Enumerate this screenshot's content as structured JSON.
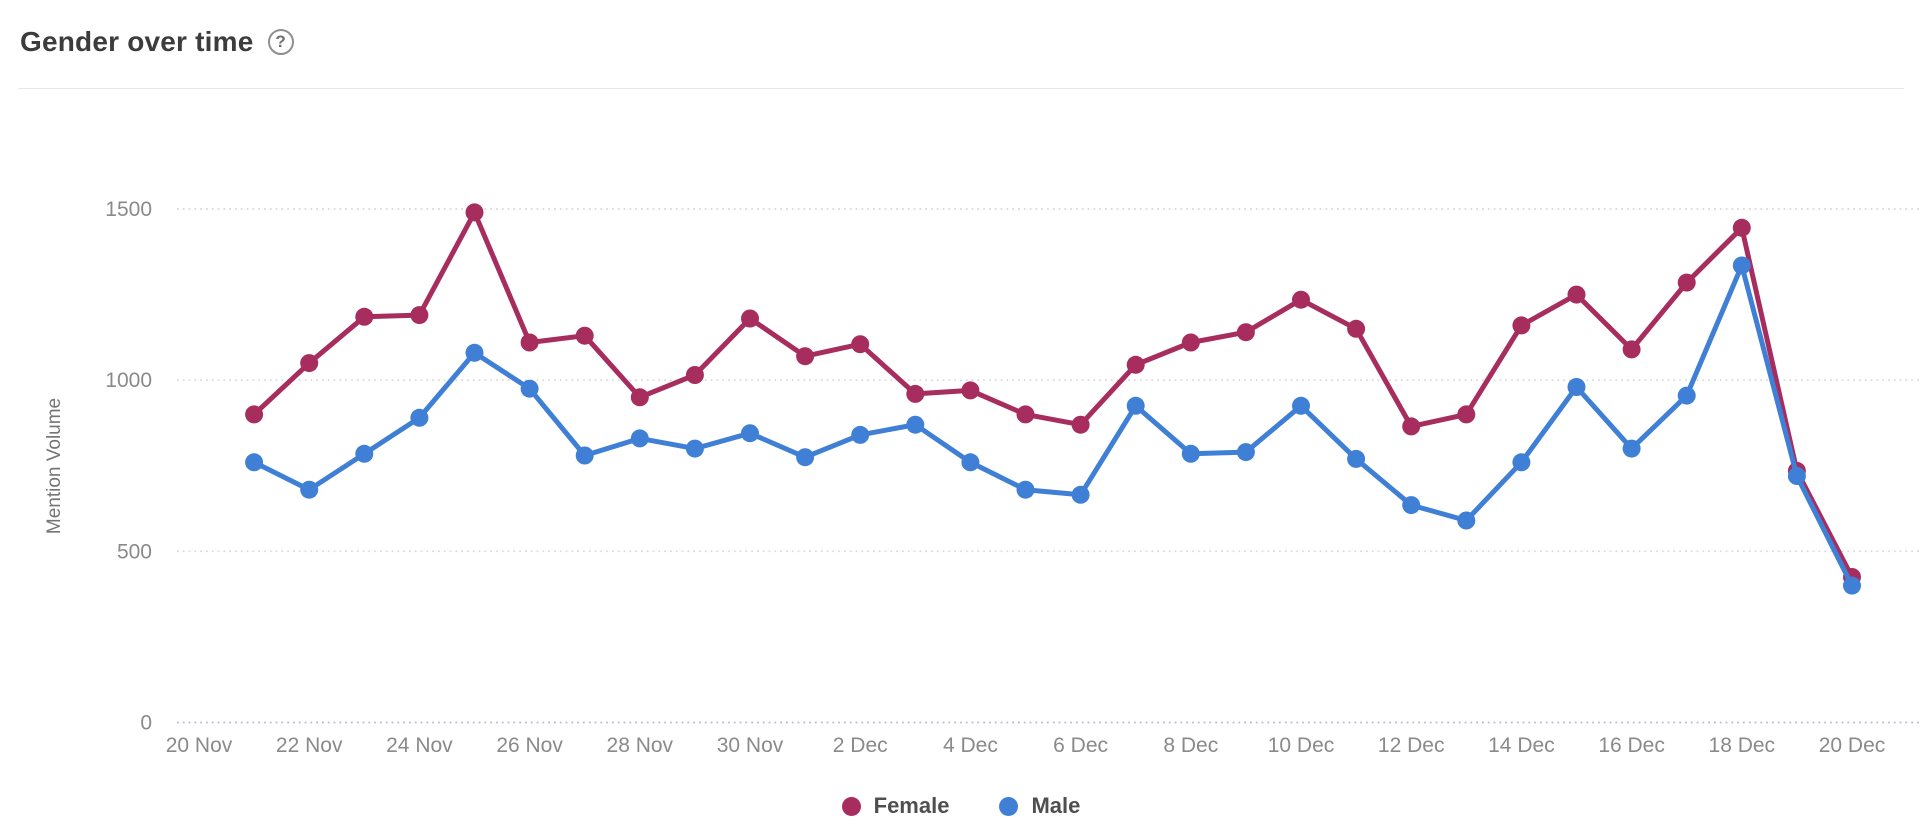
{
  "header": {
    "title": "Gender over time",
    "help_glyph": "?"
  },
  "legend": [
    {
      "label": "Female",
      "color": "#a82d5f"
    },
    {
      "label": "Male",
      "color": "#3f80d6"
    }
  ],
  "chart_data": {
    "type": "line",
    "title": "Gender over time",
    "xlabel": "",
    "ylabel": "Mention Volume",
    "ylim": [
      0,
      1500
    ],
    "yticks": [
      0,
      500,
      1000,
      1500
    ],
    "grid": "horizontal-dotted",
    "legend_position": "bottom",
    "x": [
      "21 Nov",
      "22 Nov",
      "23 Nov",
      "24 Nov",
      "25 Nov",
      "26 Nov",
      "27 Nov",
      "28 Nov",
      "29 Nov",
      "30 Nov",
      "1 Dec",
      "2 Dec",
      "3 Dec",
      "4 Dec",
      "5 Dec",
      "6 Dec",
      "7 Dec",
      "8 Dec",
      "9 Dec",
      "10 Dec",
      "11 Dec",
      "12 Dec",
      "13 Dec",
      "14 Dec",
      "15 Dec",
      "16 Dec",
      "17 Dec",
      "18 Dec",
      "19 Dec",
      "20 Dec"
    ],
    "xtick_labels": [
      "20 Nov",
      "22 Nov",
      "24 Nov",
      "26 Nov",
      "28 Nov",
      "30 Nov",
      "2 Dec",
      "4 Dec",
      "6 Dec",
      "8 Dec",
      "10 Dec",
      "12 Dec",
      "14 Dec",
      "16 Dec",
      "18 Dec",
      "20 Dec"
    ],
    "series": [
      {
        "name": "Female",
        "color": "#a82d5f",
        "values": [
          900,
          1050,
          1185,
          1190,
          1490,
          1110,
          1130,
          950,
          1015,
          1180,
          1070,
          1105,
          960,
          970,
          900,
          870,
          1045,
          1110,
          1140,
          1235,
          1150,
          865,
          900,
          1160,
          1250,
          1090,
          1285,
          1445,
          735,
          425
        ]
      },
      {
        "name": "Male",
        "color": "#3f80d6",
        "values": [
          760,
          680,
          785,
          890,
          1080,
          975,
          780,
          830,
          800,
          845,
          775,
          840,
          870,
          760,
          680,
          665,
          925,
          785,
          790,
          925,
          770,
          635,
          590,
          760,
          980,
          800,
          955,
          1335,
          720,
          400
        ]
      }
    ],
    "axis_text_color": "#8a8a8a",
    "gridline_color": "#d9d9d9",
    "zeroline_color": "#b4bccf"
  }
}
